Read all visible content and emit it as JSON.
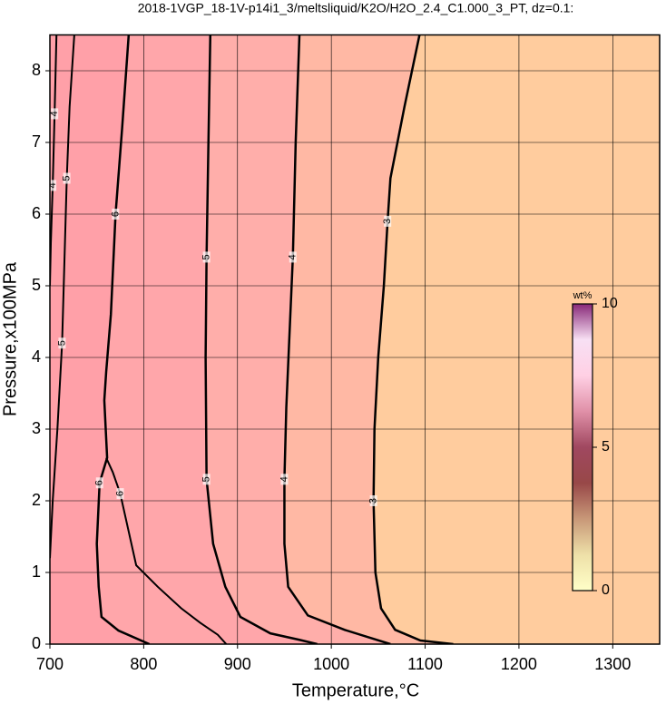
{
  "chart_data": {
    "type": "contour",
    "title": "2018-1VGP_18-1V-p14i1_3/meltsliquid/K2O/H2O_2.4_C1.000_3_PT, dz=0.1:",
    "xlabel": "Temperature,°C",
    "ylabel": "Pressure,x100MPa",
    "xlim": [
      700,
      1350
    ],
    "ylim": [
      0,
      8.5
    ],
    "xticks": [
      700,
      800,
      900,
      1000,
      1100,
      1200,
      1300
    ],
    "yticks": [
      0,
      1,
      2,
      3,
      4,
      5,
      6,
      7,
      8
    ],
    "grid": true,
    "background": "#ffcc9e",
    "contours": [
      {
        "level": 3,
        "fill": "#ffb8a4",
        "x": [
          1094,
          1078,
          1063,
          1060,
          1056,
          1050,
          1046,
          1045,
          1047,
          1053,
          1068,
          1095,
          1130
        ],
        "y": [
          8.5,
          7.5,
          6.5,
          5.9,
          5.0,
          4.0,
          3.0,
          2.0,
          1.0,
          0.5,
          0.2,
          0.05,
          0
        ]
      },
      {
        "level": 4,
        "fill": "#ffaeaa",
        "x": [
          966,
          962,
          959,
          956,
          952,
          950,
          950,
          954,
          975,
          1014,
          1063
        ],
        "y": [
          8.5,
          7.0,
          5.4,
          4.5,
          3.3,
          2.3,
          1.4,
          0.8,
          0.4,
          0.2,
          0
        ]
      },
      {
        "level": 5,
        "fill": "#ffa6aa",
        "x": [
          871,
          869,
          867,
          866,
          867,
          874,
          887,
          903,
          935,
          966,
          985
        ],
        "y": [
          8.5,
          7.0,
          5.4,
          4.0,
          2.3,
          1.4,
          0.8,
          0.38,
          0.15,
          0.06,
          0
        ]
      },
      {
        "level": 6,
        "fill": "#ffa0a8",
        "x": [
          784,
          777,
          770,
          765,
          760,
          758,
          761,
          753,
          750,
          752,
          755,
          773,
          806
        ],
        "y": [
          8.5,
          7.2,
          6.0,
          4.6,
          3.8,
          3.4,
          2.6,
          2.25,
          1.4,
          0.8,
          0.38,
          0.19,
          0
        ]
      },
      {
        "level": 6,
        "x": [
          760,
          767,
          775,
          792,
          815,
          840,
          860,
          879,
          888
        ],
        "y": [
          2.6,
          2.4,
          2.1,
          1.1,
          0.8,
          0.5,
          0.3,
          0.13,
          0
        ]
      },
      {
        "level": 4,
        "x": [
          707,
          705,
          703,
          701,
          700
        ],
        "y": [
          8.5,
          7.4,
          6.4,
          5.6,
          5.0
        ]
      },
      {
        "level": 5,
        "x": [
          726,
          721,
          718,
          713,
          708,
          703,
          700
        ],
        "y": [
          8.5,
          7.5,
          6.5,
          4.2,
          3.0,
          2.0,
          1.2
        ]
      }
    ],
    "colorbar": {
      "label": "wt%",
      "lim": [
        0,
        10
      ],
      "ticks": [
        0,
        5,
        10
      ],
      "colors": [
        "#ffffc8",
        "#eee0a8",
        "#c89878",
        "#984848",
        "#a04860",
        "#e090a8",
        "#ffd0e4",
        "#f8e0f4",
        "#882878"
      ]
    }
  }
}
